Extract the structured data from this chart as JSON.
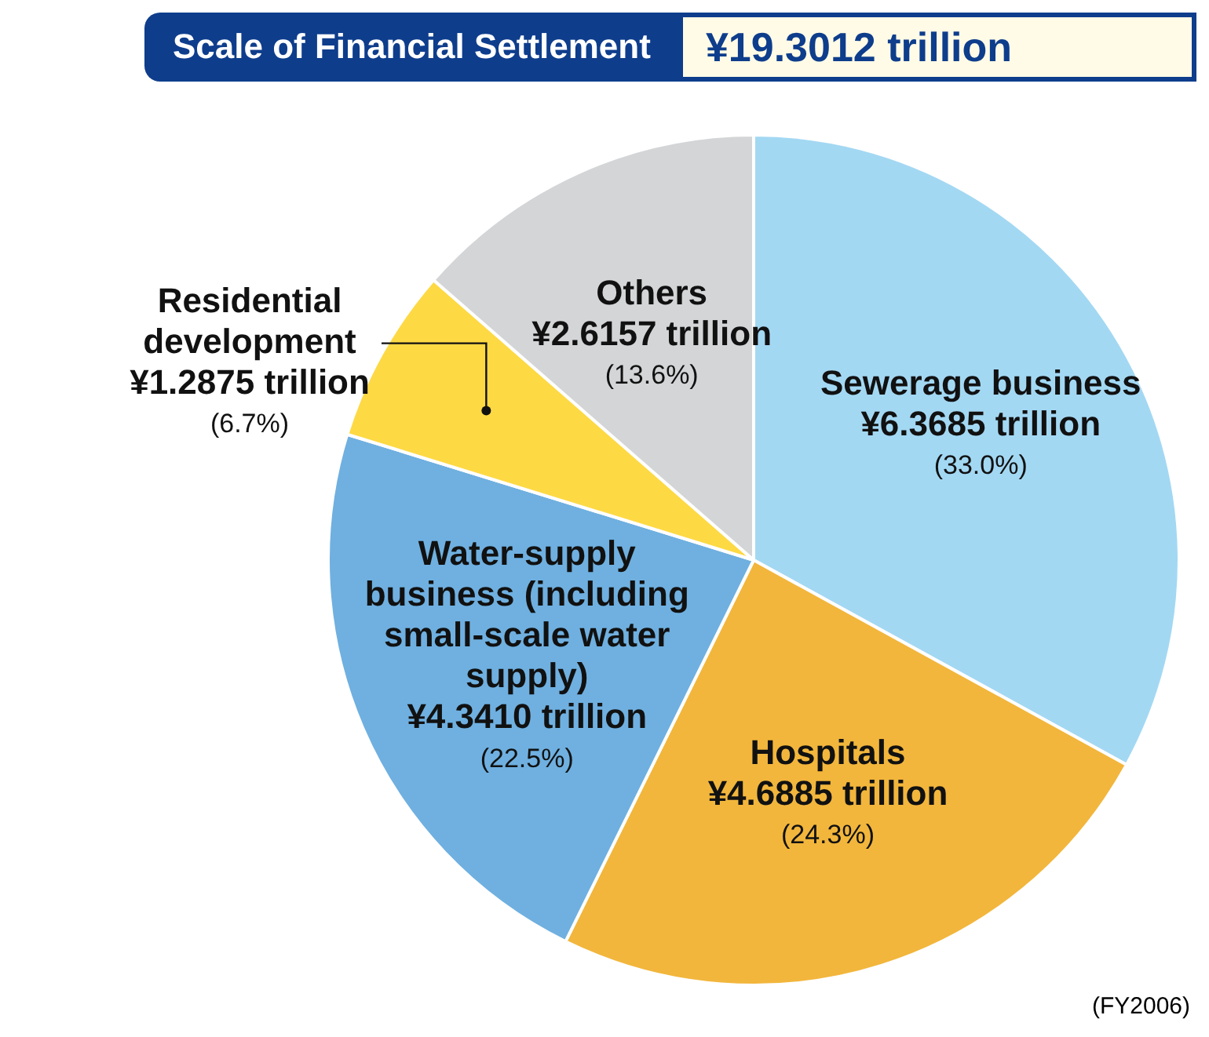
{
  "chart_data": {
    "type": "pie",
    "title": "Scale of Financial Settlement",
    "subtitle": "¥19.3012 trillion",
    "categories": [
      "Sewerage business",
      "Hospitals",
      "Water-supply business (including small-scale water supply)",
      "Residential development",
      "Others"
    ],
    "values": [
      6.3685,
      4.6885,
      4.341,
      1.2875,
      2.6157
    ],
    "colors": [
      "#a3d8f3",
      "#f2b63c",
      "#6fb0e0",
      "#fdd944",
      "#d3d5d7"
    ],
    "value_labels": [
      "¥6.3685 trillion\n(33.0%)",
      "¥4.6885 trillion\n(24.3%)",
      "¥4.3410 trillion\n(22.5%)",
      "¥1.2875 trillion\n(6.7%)",
      "¥2.6157 trillion\n(13.6%)"
    ],
    "annotations": [
      "(FY2006)"
    ],
    "legend": false
  }
}
